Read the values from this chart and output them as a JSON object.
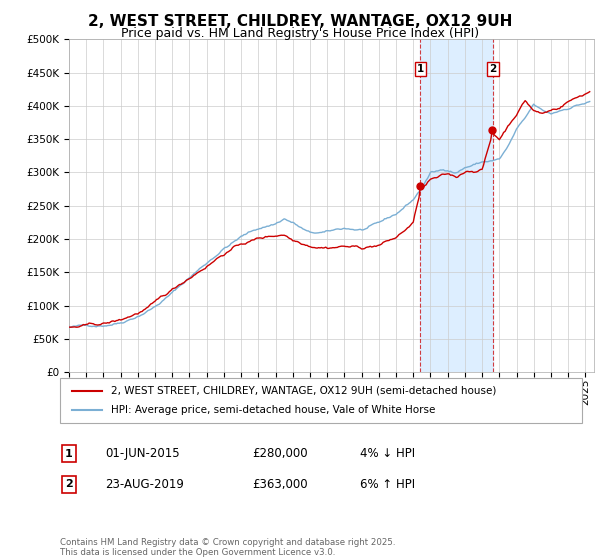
{
  "title": "2, WEST STREET, CHILDREY, WANTAGE, OX12 9UH",
  "subtitle": "Price paid vs. HM Land Registry's House Price Index (HPI)",
  "ylim": [
    0,
    500000
  ],
  "yticks": [
    0,
    50000,
    100000,
    150000,
    200000,
    250000,
    300000,
    350000,
    400000,
    450000,
    500000
  ],
  "x_start_year": 1995,
  "x_end_year": 2025,
  "sale1_date": 2015.42,
  "sale1_price": 280000,
  "sale2_date": 2019.62,
  "sale2_price": 363000,
  "sale1_date_str": "01-JUN-2015",
  "sale2_date_str": "23-AUG-2019",
  "legend1": "2, WEST STREET, CHILDREY, WANTAGE, OX12 9UH (semi-detached house)",
  "legend2": "HPI: Average price, semi-detached house, Vale of White Horse",
  "line1_color": "#cc0000",
  "line2_color": "#7bafd4",
  "shading_color": "#ddeeff",
  "grid_color": "#cccccc",
  "bg_color": "#ffffff",
  "footnote": "Contains HM Land Registry data © Crown copyright and database right 2025.\nThis data is licensed under the Open Government Licence v3.0.",
  "title_fontsize": 11,
  "subtitle_fontsize": 9,
  "tick_fontsize": 7.5,
  "hpi_keypoints_t": [
    0,
    1,
    2,
    3,
    4,
    5,
    6,
    7,
    8,
    9,
    10,
    11,
    12,
    12.5,
    13,
    14,
    15,
    16,
    17,
    18,
    19,
    20,
    20.5,
    21,
    22,
    22.5,
    23,
    24,
    25,
    25.5,
    26,
    26.5,
    27,
    27.5,
    28,
    28.5,
    29,
    29.5,
    30.25
  ],
  "hpi_keypoints_v": [
    68000,
    69000,
    72000,
    78000,
    90000,
    105000,
    125000,
    148000,
    170000,
    193000,
    210000,
    222000,
    230000,
    238000,
    232000,
    215000,
    215000,
    220000,
    218000,
    225000,
    238000,
    260000,
    278000,
    300000,
    305000,
    302000,
    310000,
    318000,
    322000,
    340000,
    365000,
    380000,
    400000,
    390000,
    385000,
    390000,
    395000,
    400000,
    405000
  ],
  "prop_keypoints_t": [
    0,
    1,
    2,
    3,
    4,
    5,
    6,
    7,
    8,
    9,
    10,
    11,
    12,
    12.5,
    13,
    14,
    15,
    16,
    17,
    18,
    19,
    20,
    20.42,
    21,
    22,
    22.5,
    23,
    24,
    24.62,
    25,
    25.5,
    26,
    26.5,
    27,
    27.5,
    28,
    28.5,
    29,
    29.5,
    30.25
  ],
  "prop_keypoints_v": [
    68000,
    69000,
    71000,
    76000,
    87000,
    100000,
    118000,
    138000,
    158000,
    178000,
    192000,
    200000,
    205000,
    208000,
    200000,
    195000,
    195000,
    198000,
    195000,
    200000,
    210000,
    232000,
    280000,
    295000,
    300000,
    295000,
    305000,
    310000,
    363000,
    355000,
    375000,
    395000,
    415000,
    400000,
    395000,
    400000,
    405000,
    415000,
    420000,
    430000
  ]
}
